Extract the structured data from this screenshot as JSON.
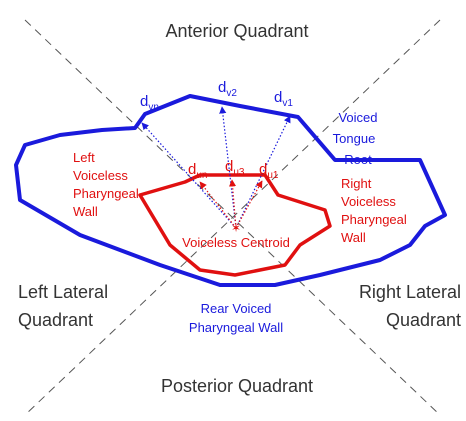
{
  "quadrants": {
    "anterior": "Anterior Quadrant",
    "left_lateral": [
      "Left Lateral",
      "Quadrant"
    ],
    "right_lateral": [
      "Right Lateral",
      "Quadrant"
    ],
    "posterior": "Posterior Quadrant"
  },
  "voiced_labels": {
    "tongue_root": [
      "Voiced",
      "Tongue",
      "Root"
    ],
    "rear_wall": [
      "Rear Voiced",
      "Pharyngeal Wall"
    ]
  },
  "voiceless_labels": {
    "left_wall": [
      "Left",
      "Voiceless",
      "Pharyngeal",
      "Wall"
    ],
    "right_wall": [
      "Right",
      "Voiceless",
      "Pharyngeal",
      "Wall"
    ],
    "centroid": "Voiceless Centroid"
  },
  "distances": {
    "voiced": [
      {
        "base": "d",
        "sub": "vn"
      },
      {
        "base": "d",
        "sub": "v2"
      },
      {
        "base": "d",
        "sub": "v1"
      }
    ],
    "voiceless": [
      {
        "base": "d",
        "sub": "un"
      },
      {
        "base": "d",
        "sub": "u3"
      },
      {
        "base": "d",
        "sub": "u1"
      }
    ]
  }
}
